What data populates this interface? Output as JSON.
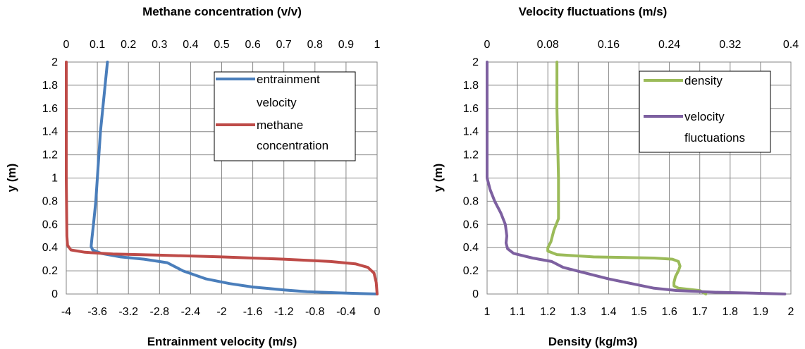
{
  "chart_data": [
    {
      "type": "line",
      "top_axis": {
        "title": "Methane concentration (v/v)",
        "range": [
          0,
          1
        ],
        "ticks": [
          "0",
          "0.1",
          "0.2",
          "0.3",
          "0.4",
          "0.5",
          "0.6",
          "0.7",
          "0.8",
          "0.9",
          "1"
        ]
      },
      "bottom_axis": {
        "title": "Entrainment velocity (m/s)",
        "range": [
          -4,
          0
        ],
        "ticks": [
          "-4",
          "-3.6",
          "-3.2",
          "-2.8",
          "-2.4",
          "-2",
          "-1.6",
          "-1.2",
          "-0.8",
          "-0.4",
          "0"
        ]
      },
      "y_axis": {
        "title": "y (m)",
        "range": [
          0,
          2
        ],
        "ticks": [
          "0",
          "0.2",
          "0.4",
          "0.6",
          "0.8",
          "1",
          "1.2",
          "1.4",
          "1.6",
          "1.8",
          "2"
        ]
      },
      "grid": true,
      "legend_position": "top-right",
      "series": [
        {
          "name_lines": [
            "entrainment",
            "velocity"
          ],
          "axis": "bottom",
          "color": "#4A7EBB",
          "points": [
            [
              -3.47,
              2.0
            ],
            [
              -3.5,
              1.8
            ],
            [
              -3.53,
              1.6
            ],
            [
              -3.56,
              1.4
            ],
            [
              -3.58,
              1.2
            ],
            [
              -3.6,
              1.0
            ],
            [
              -3.62,
              0.8
            ],
            [
              -3.65,
              0.6
            ],
            [
              -3.67,
              0.48
            ],
            [
              -3.68,
              0.41
            ],
            [
              -3.66,
              0.38
            ],
            [
              -3.55,
              0.35
            ],
            [
              -3.3,
              0.32
            ],
            [
              -3.0,
              0.3
            ],
            [
              -2.7,
              0.27
            ],
            [
              -2.5,
              0.2
            ],
            [
              -2.2,
              0.13
            ],
            [
              -1.9,
              0.09
            ],
            [
              -1.6,
              0.06
            ],
            [
              -1.2,
              0.035
            ],
            [
              -0.9,
              0.02
            ],
            [
              -0.5,
              0.01
            ],
            [
              0.0,
              0.0
            ]
          ]
        },
        {
          "name_lines": [
            "methane",
            "concentration"
          ],
          "axis": "top",
          "color": "#BE4B48",
          "points": [
            [
              0.0,
              2.0
            ],
            [
              0.0,
              1.0
            ],
            [
              0.002,
              0.5
            ],
            [
              0.004,
              0.42
            ],
            [
              0.015,
              0.38
            ],
            [
              0.06,
              0.36
            ],
            [
              0.15,
              0.345
            ],
            [
              0.3,
              0.335
            ],
            [
              0.5,
              0.32
            ],
            [
              0.7,
              0.3
            ],
            [
              0.85,
              0.28
            ],
            [
              0.93,
              0.26
            ],
            [
              0.97,
              0.23
            ],
            [
              0.99,
              0.18
            ],
            [
              0.997,
              0.1
            ],
            [
              1.0,
              0.0
            ]
          ]
        }
      ]
    },
    {
      "type": "line",
      "top_axis": {
        "title": "Velocity fluctuations (m/s)",
        "range": [
          0,
          0.4
        ],
        "ticks": [
          "0",
          "0.08",
          "0.16",
          "0.24",
          "0.32",
          "0.4"
        ]
      },
      "bottom_axis": {
        "title": "Density (kg/m3)",
        "range": [
          1,
          2
        ],
        "ticks": [
          "1",
          "1.1",
          "1.2",
          "1.3",
          "1.4",
          "1.5",
          "1.6",
          "1.7",
          "1.8",
          "1.9",
          "2"
        ]
      },
      "y_axis": {
        "title": "y (m)",
        "range": [
          0,
          2
        ],
        "ticks": [
          "0",
          "0.2",
          "0.4",
          "0.6",
          "0.8",
          "1",
          "1.2",
          "1.4",
          "1.6",
          "1.8",
          "2"
        ]
      },
      "grid": true,
      "legend_position": "top-right",
      "series": [
        {
          "name_lines": [
            "density"
          ],
          "axis": "bottom",
          "color": "#9BBB59",
          "points": [
            [
              1.23,
              2.0
            ],
            [
              1.23,
              1.6
            ],
            [
              1.235,
              1.0
            ],
            [
              1.235,
              0.65
            ],
            [
              1.22,
              0.55
            ],
            [
              1.21,
              0.45
            ],
            [
              1.2,
              0.4
            ],
            [
              1.2,
              0.37
            ],
            [
              1.23,
              0.34
            ],
            [
              1.35,
              0.32
            ],
            [
              1.55,
              0.31
            ],
            [
              1.61,
              0.3
            ],
            [
              1.63,
              0.28
            ],
            [
              1.635,
              0.24
            ],
            [
              1.63,
              0.2
            ],
            [
              1.62,
              0.15
            ],
            [
              1.615,
              0.1
            ],
            [
              1.615,
              0.07
            ],
            [
              1.63,
              0.05
            ],
            [
              1.7,
              0.03
            ],
            [
              1.72,
              0.0
            ]
          ]
        },
        {
          "name_lines": [
            "velocity",
            "fluctuations"
          ],
          "axis": "top",
          "color": "#7D60A0",
          "points": [
            [
              0.0,
              2.0
            ],
            [
              0.0,
              1.5
            ],
            [
              0.0,
              1.0
            ],
            [
              0.004,
              0.9
            ],
            [
              0.01,
              0.8
            ],
            [
              0.018,
              0.7
            ],
            [
              0.024,
              0.6
            ],
            [
              0.026,
              0.5
            ],
            [
              0.025,
              0.44
            ],
            [
              0.027,
              0.39
            ],
            [
              0.035,
              0.35
            ],
            [
              0.06,
              0.31
            ],
            [
              0.085,
              0.28
            ],
            [
              0.1,
              0.23
            ],
            [
              0.13,
              0.18
            ],
            [
              0.16,
              0.13
            ],
            [
              0.19,
              0.09
            ],
            [
              0.22,
              0.05
            ],
            [
              0.25,
              0.03
            ],
            [
              0.3,
              0.015
            ],
            [
              0.35,
              0.007
            ],
            [
              0.392,
              0.0
            ]
          ]
        }
      ]
    }
  ]
}
